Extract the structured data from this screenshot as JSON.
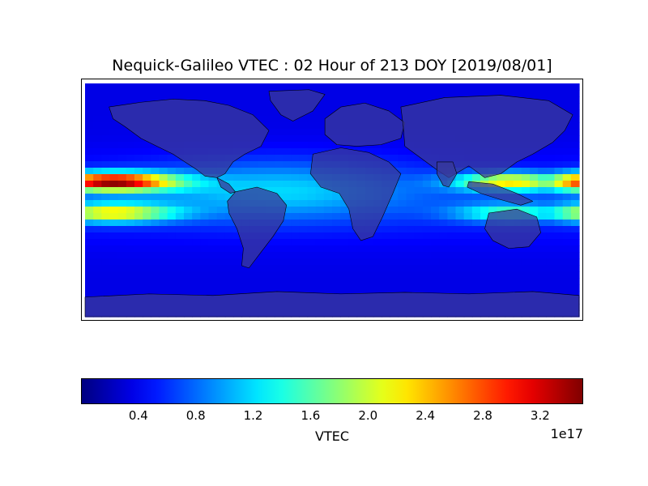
{
  "title": "Nequick-Galileo VTEC : 02 Hour of 213 DOY [2019/08/01]",
  "colorbar": {
    "label": "VTEC",
    "exponent": "1e17",
    "range": [
      0.0,
      3.5
    ],
    "ticks": [
      "0.4",
      "0.8",
      "1.2",
      "1.6",
      "2.0",
      "2.4",
      "2.8",
      "3.2"
    ],
    "tick_values": [
      0.4,
      0.8,
      1.2,
      1.6,
      2.0,
      2.4,
      2.8,
      3.2
    ],
    "colormap": "jet"
  },
  "map": {
    "projection": "cylindrical",
    "lon_range": [
      -180,
      180
    ],
    "lat_range": [
      -90,
      90
    ],
    "land_color": "#3a3a9a",
    "coastline_color": "#000000"
  },
  "chart_data": {
    "type": "heatmap",
    "title": "Nequick-Galileo VTEC : 02 Hour of 213 DOY [2019/08/01]",
    "colorbar_label": "VTEC",
    "units_scale": "1e17",
    "value_range": [
      0.0,
      3.5
    ],
    "peak_regions": [
      {
        "lon": -160,
        "lat": 15,
        "value": 3.4
      },
      {
        "lon": 178,
        "lat": 15,
        "value": 3.0
      },
      {
        "lon": 120,
        "lat": 0,
        "value": 1.8
      },
      {
        "lon": -160,
        "lat": -10,
        "value": 2.0
      }
    ]
  }
}
